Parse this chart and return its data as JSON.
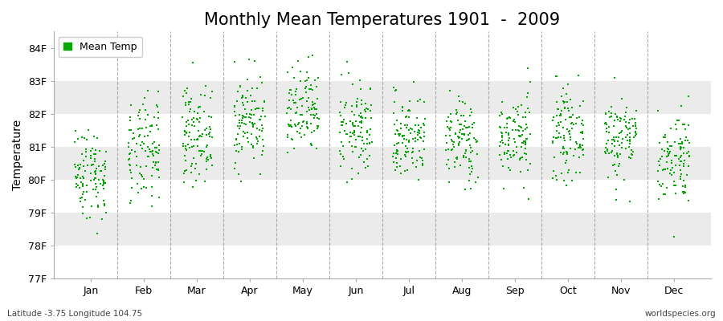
{
  "title": "Monthly Mean Temperatures 1901  -  2009",
  "ylabel": "Temperature",
  "xlabel": "",
  "footnote_left": "Latitude -3.75 Longitude 104.75",
  "footnote_right": "worldspecies.org",
  "legend_label": "Mean Temp",
  "marker_color": "#00aa00",
  "background_color": "#ffffff",
  "band_color": "#ebebeb",
  "dashed_line_color": "#999999",
  "ylim": [
    77,
    84.5
  ],
  "yticks": [
    77,
    78,
    79,
    80,
    81,
    82,
    83,
    84
  ],
  "ytick_labels": [
    "77F",
    "78F",
    "79F",
    "80F",
    "81F",
    "82F",
    "83F",
    "84F"
  ],
  "months": [
    "Jan",
    "Feb",
    "Mar",
    "Apr",
    "May",
    "Jun",
    "Jul",
    "Aug",
    "Sep",
    "Oct",
    "Nov",
    "Dec"
  ],
  "month_means": [
    80.2,
    80.8,
    81.4,
    81.8,
    82.0,
    81.5,
    81.3,
    81.2,
    81.3,
    81.4,
    81.3,
    80.7
  ],
  "month_stds": [
    0.7,
    0.8,
    0.7,
    0.7,
    0.7,
    0.7,
    0.65,
    0.65,
    0.65,
    0.65,
    0.65,
    0.7
  ],
  "n_years": 109,
  "seed": 42,
  "title_fontsize": 15,
  "axis_label_fontsize": 10,
  "tick_fontsize": 9,
  "legend_fontsize": 9,
  "marker_size": 2.5
}
